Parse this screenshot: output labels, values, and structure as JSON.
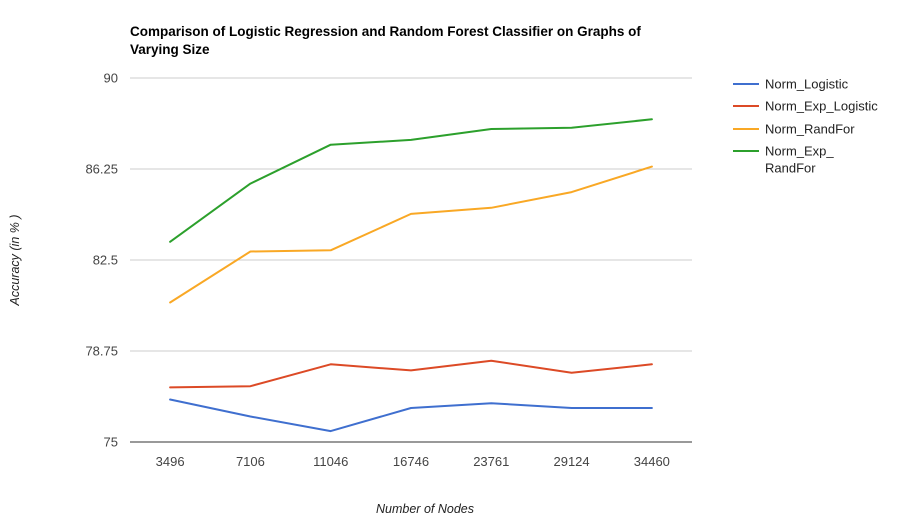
{
  "chart_data": {
    "type": "line",
    "title_lines": [
      "Comparison of Logistic Regression and Random Forest Classifier on Graphs of",
      "Varying Size"
    ],
    "xlabel": "Number of Nodes",
    "ylabel": "Accuracy (in % )",
    "categories": [
      "3496",
      "7106",
      "11046",
      "16746",
      "23761",
      "29124",
      "34460"
    ],
    "y_ticks": [
      75,
      78.75,
      82.5,
      86.25,
      90
    ],
    "y_tick_labels": [
      "75",
      "78.75",
      "82.5",
      "86.25",
      "90"
    ],
    "ylim": [
      75,
      90
    ],
    "grid": true,
    "legend_position": "right",
    "series": [
      {
        "name": "Norm_Logistic",
        "name_lines": [
          "Norm_Logistic"
        ],
        "color": "#3f6fcf",
        "values": [
          76.75,
          76.05,
          75.45,
          76.4,
          76.6,
          76.4,
          76.4
        ]
      },
      {
        "name": "Norm_Exp_Logistic",
        "name_lines": [
          "Norm_Exp_Logistic"
        ],
        "color": "#dc4a26",
        "values": [
          77.25,
          77.3,
          78.2,
          77.95,
          78.35,
          77.85,
          78.2
        ]
      },
      {
        "name": "Norm_RandFor",
        "name_lines": [
          "Norm_RandFor"
        ],
        "color": "#f9a825",
        "values": [
          80.75,
          82.85,
          82.9,
          84.4,
          84.65,
          85.3,
          86.35
        ]
      },
      {
        "name": "Norm_Exp_ RandFor",
        "name_lines": [
          "Norm_Exp_",
          "RandFor"
        ],
        "color": "#2ca02c",
        "values": [
          83.25,
          85.65,
          87.25,
          87.45,
          87.9,
          87.95,
          88.3
        ]
      }
    ]
  }
}
